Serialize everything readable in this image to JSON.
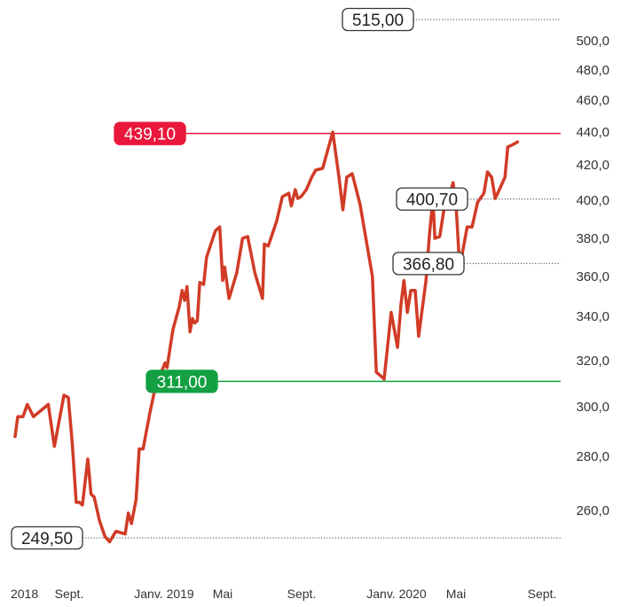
{
  "chart_data": {
    "type": "line",
    "title": "",
    "xlabel": "",
    "ylabel": "",
    "y_ticks": [
      {
        "value": 260,
        "label": "260,0"
      },
      {
        "value": 280,
        "label": "280,0"
      },
      {
        "value": 300,
        "label": "300,0"
      },
      {
        "value": 320,
        "label": "320,0"
      },
      {
        "value": 340,
        "label": "340,0"
      },
      {
        "value": 360,
        "label": "360,0"
      },
      {
        "value": 380,
        "label": "380,0"
      },
      {
        "value": 400,
        "label": "400,0"
      },
      {
        "value": 420,
        "label": "420,0"
      },
      {
        "value": 440,
        "label": "440,0"
      },
      {
        "value": 460,
        "label": "460,0"
      },
      {
        "value": 480,
        "label": "480,0"
      },
      {
        "value": 500,
        "label": "500,0"
      }
    ],
    "x_ticks": [
      {
        "date": "2018-07-01",
        "label": "2018"
      },
      {
        "date": "2018-09-01",
        "label": "Sept."
      },
      {
        "date": "2019-01-01",
        "label": "Janv. 2019"
      },
      {
        "date": "2019-05-01",
        "label": "Mai"
      },
      {
        "date": "2019-09-01",
        "label": "Sept."
      },
      {
        "date": "2020-01-01",
        "label": "Janv. 2020"
      },
      {
        "date": "2020-05-01",
        "label": "Mai"
      },
      {
        "date": "2020-09-01",
        "label": "Sept."
      }
    ],
    "levels": [
      {
        "value": 515.0,
        "label": "515,00",
        "style": "neutral",
        "line": "dotted"
      },
      {
        "value": 439.1,
        "label": "439,10",
        "style": "red",
        "line": "solid"
      },
      {
        "value": 400.7,
        "label": "400,70",
        "style": "neutral",
        "line": "dotted"
      },
      {
        "value": 366.8,
        "label": "366,80",
        "style": "neutral",
        "line": "dotted"
      },
      {
        "value": 311.0,
        "label": "311,00",
        "style": "green",
        "line": "solid"
      },
      {
        "value": 249.5,
        "label": "249,50",
        "style": "neutral",
        "line": "dotted"
      }
    ],
    "series": [
      {
        "color": "#d13b26",
        "points": [
          [
            "2018-07-01",
            288
          ],
          [
            "2018-07-04",
            296
          ],
          [
            "2018-07-10",
            296
          ],
          [
            "2018-07-15",
            301
          ],
          [
            "2018-07-22",
            296
          ],
          [
            "2018-07-29",
            298
          ],
          [
            "2018-08-08",
            301
          ],
          [
            "2018-08-15",
            284
          ],
          [
            "2018-08-26",
            305
          ],
          [
            "2018-08-31",
            304
          ],
          [
            "2018-09-05",
            285
          ],
          [
            "2018-09-10",
            263
          ],
          [
            "2018-09-14",
            263
          ],
          [
            "2018-09-18",
            262
          ],
          [
            "2018-09-25",
            279
          ],
          [
            "2018-09-29",
            266
          ],
          [
            "2018-10-03",
            265
          ],
          [
            "2018-10-10",
            256
          ],
          [
            "2018-10-17",
            250
          ],
          [
            "2018-10-23",
            248
          ],
          [
            "2018-10-31",
            252
          ],
          [
            "2018-11-12",
            251
          ],
          [
            "2018-11-16",
            259
          ],
          [
            "2018-11-20",
            255
          ],
          [
            "2018-11-26",
            264
          ],
          [
            "2018-11-30",
            283
          ],
          [
            "2018-12-05",
            283
          ],
          [
            "2018-12-14",
            298
          ],
          [
            "2018-12-21",
            309
          ],
          [
            "2019-01-03",
            319
          ],
          [
            "2019-01-07",
            317
          ],
          [
            "2019-01-19",
            334
          ],
          [
            "2019-02-01",
            345
          ],
          [
            "2019-02-07",
            353
          ],
          [
            "2019-02-12",
            348
          ],
          [
            "2019-02-17",
            355
          ],
          [
            "2019-02-23",
            333
          ],
          [
            "2019-02-28",
            339
          ],
          [
            "2019-03-05",
            337
          ],
          [
            "2019-03-10",
            338
          ],
          [
            "2019-03-15",
            357
          ],
          [
            "2019-03-23",
            356
          ],
          [
            "2019-03-29",
            370
          ],
          [
            "2019-04-12",
            381
          ],
          [
            "2019-04-16",
            384
          ],
          [
            "2019-04-25",
            386
          ],
          [
            "2019-05-01",
            358
          ],
          [
            "2019-05-04",
            365
          ],
          [
            "2019-05-11",
            349
          ],
          [
            "2019-05-23",
            362
          ],
          [
            "2019-06-01",
            380
          ],
          [
            "2019-06-09",
            381
          ],
          [
            "2019-06-20",
            362
          ],
          [
            "2019-07-02",
            349
          ],
          [
            "2019-07-05",
            377
          ],
          [
            "2019-07-11",
            376
          ],
          [
            "2019-07-24",
            389
          ],
          [
            "2019-08-02",
            402
          ],
          [
            "2019-08-12",
            404
          ],
          [
            "2019-08-16",
            397
          ],
          [
            "2019-08-22",
            406
          ],
          [
            "2019-08-26",
            401
          ],
          [
            "2019-08-31",
            402
          ],
          [
            "2019-09-07",
            406
          ],
          [
            "2019-09-14",
            413
          ],
          [
            "2019-09-19",
            417
          ],
          [
            "2019-09-28",
            418
          ],
          [
            "2019-10-11",
            440
          ],
          [
            "2019-10-19",
            413
          ],
          [
            "2019-10-24",
            395
          ],
          [
            "2019-10-29",
            413
          ],
          [
            "2019-11-05",
            415
          ],
          [
            "2019-11-15",
            398
          ],
          [
            "2019-12-01",
            360
          ],
          [
            "2019-12-06",
            315
          ],
          [
            "2019-12-13",
            313
          ],
          [
            "2019-12-16",
            312
          ],
          [
            "2019-12-25",
            342
          ],
          [
            "2020-01-03",
            326
          ],
          [
            "2020-01-10",
            346
          ],
          [
            "2020-01-16",
            358
          ],
          [
            "2020-01-23",
            342
          ],
          [
            "2020-01-30",
            353
          ],
          [
            "2020-02-08",
            353
          ],
          [
            "2020-02-15",
            331
          ],
          [
            "2020-03-01",
            358
          ],
          [
            "2020-03-08",
            382
          ],
          [
            "2020-03-15",
            401
          ],
          [
            "2020-03-19",
            380
          ],
          [
            "2020-03-29",
            381
          ],
          [
            "2020-04-07",
            396
          ],
          [
            "2020-04-16",
            401
          ],
          [
            "2020-04-25",
            410
          ],
          [
            "2020-05-01",
            398
          ],
          [
            "2020-05-06",
            367
          ],
          [
            "2020-05-10",
            372
          ],
          [
            "2020-05-17",
            386
          ],
          [
            "2020-05-24",
            386
          ],
          [
            "2020-06-01",
            399
          ],
          [
            "2020-06-10",
            404
          ],
          [
            "2020-06-15",
            416
          ],
          [
            "2020-06-21",
            413
          ],
          [
            "2020-06-26",
            401
          ],
          [
            "2020-07-02",
            406
          ],
          [
            "2020-07-10",
            413
          ],
          [
            "2020-07-14",
            431
          ],
          [
            "2020-07-20",
            432
          ],
          [
            "2020-07-28",
            434
          ]
        ]
      }
    ]
  },
  "colors": {
    "line": "#d13b26",
    "red_level": "#e8173b",
    "green_level": "#13a042",
    "neutral_badge_border": "#333333",
    "tick_text": "#333333"
  }
}
